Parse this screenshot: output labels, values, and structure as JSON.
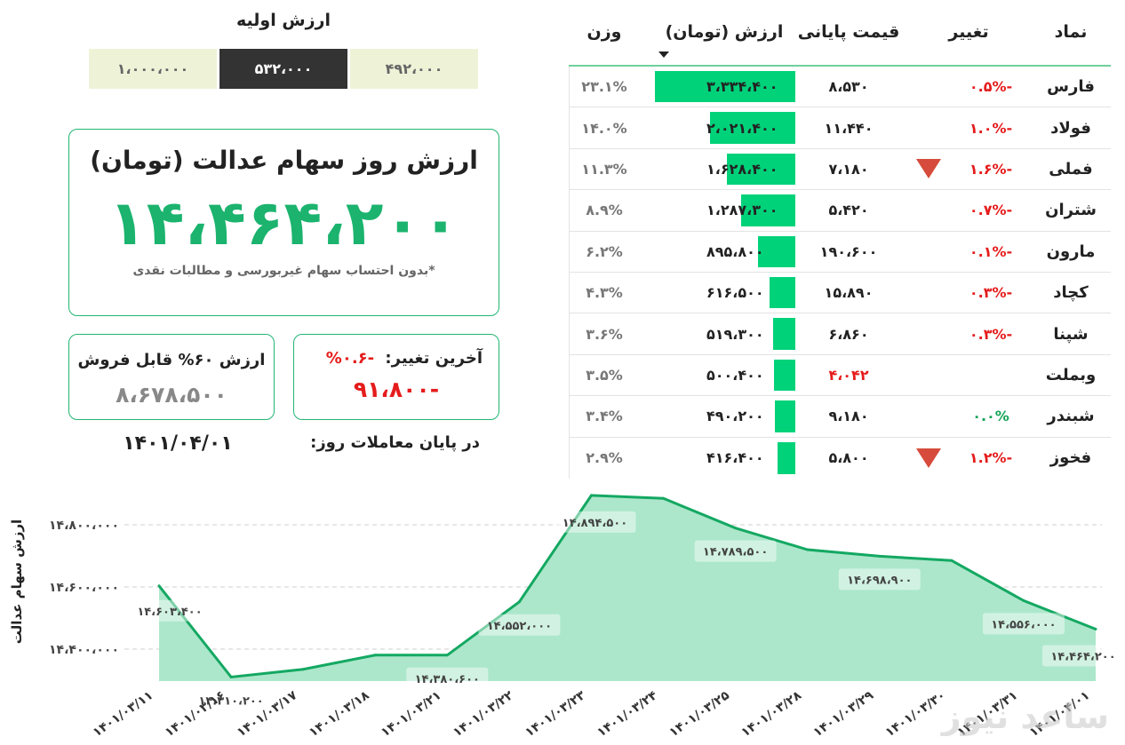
{
  "initial_value": {
    "title": "ارزش اولیه",
    "options": [
      "۱،۰۰۰،۰۰۰",
      "۵۳۲،۰۰۰",
      "۴۹۲،۰۰۰"
    ],
    "selected": "۵۳۲،۰۰۰"
  },
  "main_card": {
    "title": "ارزش روز سهام عدالت (تومان)",
    "value": "۱۴،۴۶۴،۲۰۰",
    "note": "*بدون احتساب سهام غیربورسی و مطالبات نقدی"
  },
  "sell_card": {
    "label": "ارزش ۶۰% قابل فروش",
    "value": "۸،۶۷۸،۵۰۰"
  },
  "change_card": {
    "label": "آخرین تغییر:",
    "percent": "-۰.۶%",
    "value": "-۹۱،۸۰۰"
  },
  "date": "۱۴۰۱/۰۴/۰۱",
  "end_of_day_label": "در پایان معاملات روز:",
  "colors": {
    "accent_green": "#1bb36e",
    "bar_green": "#00d27a",
    "negative_red": "#e51c1c",
    "triangle_red": "#d64b3b",
    "area_fill": "#a8e6c8",
    "line_green": "#14a862"
  },
  "table": {
    "headers": {
      "symbol": "نماد",
      "change": "تغییر",
      "price": "قیمت پایانی",
      "value": "ارزش (تومان)",
      "weight": "وزن"
    },
    "rows": [
      {
        "symbol": "فارس",
        "change": "-۰.۵%",
        "change_dir": "neg",
        "arrow": false,
        "price": "۸،۵۳۰",
        "price_red": false,
        "value": "۳،۳۳۴،۴۰۰",
        "bar": 1.0,
        "weight": "۲۳.۱%"
      },
      {
        "symbol": "فولاد",
        "change": "-۱.۰%",
        "change_dir": "neg",
        "arrow": false,
        "price": "۱۱،۴۴۰",
        "price_red": false,
        "value": "۲،۰۲۱،۴۰۰",
        "bar": 0.606,
        "weight": "۱۴.۰%"
      },
      {
        "symbol": "فملی",
        "change": "-۱.۶%",
        "change_dir": "neg",
        "arrow": true,
        "price": "۷،۱۸۰",
        "price_red": false,
        "value": "۱،۶۲۸،۴۰۰",
        "bar": 0.488,
        "weight": "۱۱.۳%"
      },
      {
        "symbol": "شتران",
        "change": "-۰.۷%",
        "change_dir": "neg",
        "arrow": false,
        "price": "۵،۴۲۰",
        "price_red": false,
        "value": "۱،۲۸۷،۳۰۰",
        "bar": 0.386,
        "weight": "۸.۹%"
      },
      {
        "symbol": "مارون",
        "change": "-۰.۱%",
        "change_dir": "neg",
        "arrow": false,
        "price": "۱۹۰،۶۰۰",
        "price_red": false,
        "value": "۸۹۵،۸۰۰",
        "bar": 0.269,
        "weight": "۶.۲%"
      },
      {
        "symbol": "کچاد",
        "change": "-۰.۳%",
        "change_dir": "neg",
        "arrow": false,
        "price": "۱۵،۸۹۰",
        "price_red": false,
        "value": "۶۱۶،۵۰۰",
        "bar": 0.185,
        "weight": "۴.۳%"
      },
      {
        "symbol": "شپنا",
        "change": "-۰.۳%",
        "change_dir": "neg",
        "arrow": false,
        "price": "۶،۸۶۰",
        "price_red": false,
        "value": "۵۱۹،۳۰۰",
        "bar": 0.156,
        "weight": "۳.۶%"
      },
      {
        "symbol": "وبملت",
        "change": "",
        "change_dir": "none",
        "arrow": false,
        "price": "۴،۰۴۲",
        "price_red": true,
        "value": "۵۰۰،۴۰۰",
        "bar": 0.15,
        "weight": "۳.۵%"
      },
      {
        "symbol": "شبندر",
        "change": "۰.۰%",
        "change_dir": "pos",
        "arrow": false,
        "price": "۹،۱۸۰",
        "price_red": false,
        "value": "۴۹۰،۲۰۰",
        "bar": 0.147,
        "weight": "۳.۴%"
      },
      {
        "symbol": "فخوز",
        "change": "-۱.۲%",
        "change_dir": "neg",
        "arrow": true,
        "price": "۵،۸۰۰",
        "price_red": false,
        "value": "۴۱۶،۴۰۰",
        "bar": 0.125,
        "weight": "۲.۹%"
      }
    ]
  },
  "chart_data": {
    "type": "area",
    "title": "",
    "xlabel": "",
    "ylabel": "ارزش سهام عدالت",
    "categories": [
      "۱۴۰۱/۰۳/۱۱",
      "۱۴۰۱/۰۳/۱۶",
      "۱۴۰۱/۰۳/۱۷",
      "۱۴۰۱/۰۳/۱۸",
      "۱۴۰۱/۰۳/۲۱",
      "۱۴۰۱/۰۳/۲۲",
      "۱۴۰۱/۰۳/۲۳",
      "۱۴۰۱/۰۳/۲۴",
      "۱۴۰۱/۰۳/۲۵",
      "۱۴۰۱/۰۳/۲۸",
      "۱۴۰۱/۰۳/۲۹",
      "۱۴۰۱/۰۳/۳۰",
      "۱۴۰۱/۰۳/۳۱",
      "۱۴۰۱/۰۴/۰۱"
    ],
    "values": [
      14603400,
      14310200,
      14335000,
      14380800,
      14380600,
      14552000,
      14894500,
      14885000,
      14789500,
      14720000,
      14698900,
      14685000,
      14556000,
      14464200
    ],
    "data_labels": [
      {
        "index": 0,
        "text": "۱۴،۶۰۳،۴۰۰"
      },
      {
        "index": 1,
        "text": "۱۴،۳۱۰،۲۰۰"
      },
      {
        "index": 4,
        "text": "۱۴،۳۸۰،۶۰۰"
      },
      {
        "index": 5,
        "text": "۱۴،۵۵۲،۰۰۰"
      },
      {
        "index": 6,
        "text": "۱۴،۸۹۴،۵۰۰"
      },
      {
        "index": 8,
        "text": "۱۴،۷۸۹،۵۰۰"
      },
      {
        "index": 10,
        "text": "۱۴،۶۹۸،۹۰۰"
      },
      {
        "index": 12,
        "text": "۱۴،۵۵۶،۰۰۰"
      },
      {
        "index": 13,
        "text": "۱۴،۴۶۴،۲۰۰"
      }
    ],
    "yticks": [
      14400000,
      14600000,
      14800000
    ],
    "ytick_labels": [
      "۱۴،۴۰۰،۰۰۰",
      "۱۴،۶۰۰،۰۰۰",
      "۱۴،۸۰۰،۰۰۰"
    ],
    "ylim": [
      14300000,
      14900000
    ],
    "grid": true,
    "legend": "none"
  },
  "watermark": "ساعد نیوز"
}
